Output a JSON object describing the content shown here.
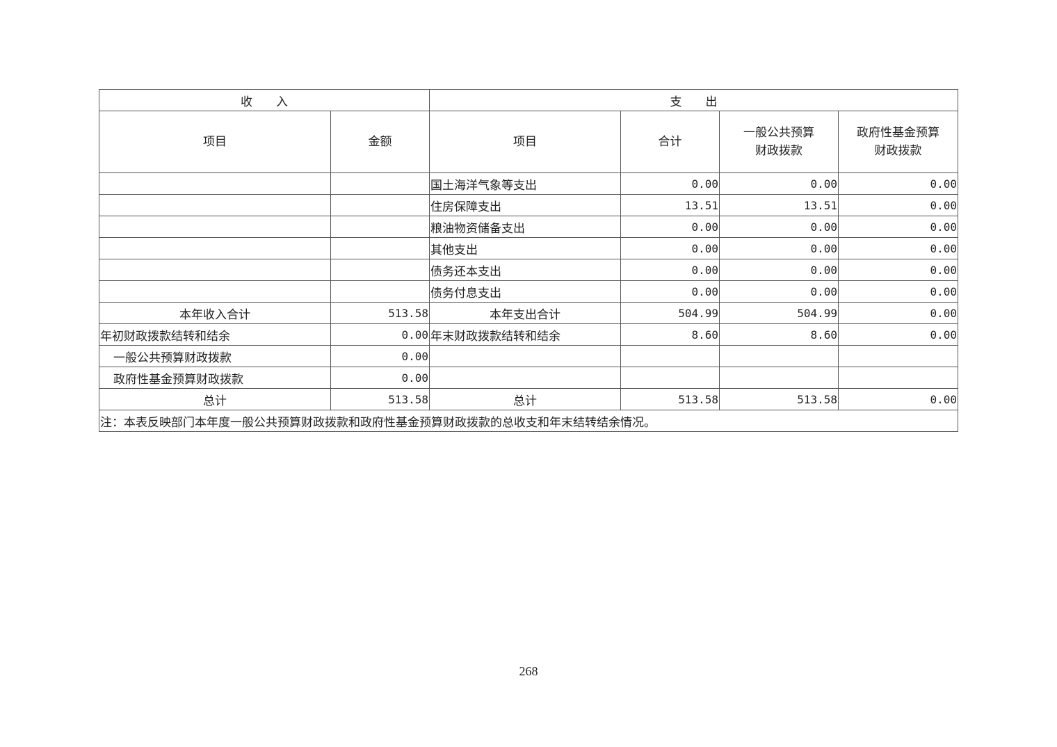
{
  "sections": {
    "income": "收　　入",
    "expense": "支　　出"
  },
  "headers": [
    "项目",
    "金额",
    "项目",
    "合计",
    "一般公共预算\n财政拨款",
    "政府性基金预算\n财政拨款"
  ],
  "rows": [
    {
      "in_item": "",
      "in_amt": "",
      "out_item": "国土海洋气象等支出",
      "total": "0.00",
      "general": "0.00",
      "fund": "0.00"
    },
    {
      "in_item": "",
      "in_amt": "",
      "out_item": "住房保障支出",
      "total": "13.51",
      "general": "13.51",
      "fund": "0.00"
    },
    {
      "in_item": "",
      "in_amt": "",
      "out_item": "粮油物资储备支出",
      "total": "0.00",
      "general": "0.00",
      "fund": "0.00"
    },
    {
      "in_item": "",
      "in_amt": "",
      "out_item": "其他支出",
      "total": "0.00",
      "general": "0.00",
      "fund": "0.00"
    },
    {
      "in_item": "",
      "in_amt": "",
      "out_item": "债务还本支出",
      "total": "0.00",
      "general": "0.00",
      "fund": "0.00"
    },
    {
      "in_item": "",
      "in_amt": "",
      "out_item": "债务付息支出",
      "total": "0.00",
      "general": "0.00",
      "fund": "0.00"
    },
    {
      "in_item": "本年收入合计",
      "in_amt": "513.58",
      "out_item": "本年支出合计",
      "total": "504.99",
      "general": "504.99",
      "fund": "0.00",
      "center": true
    },
    {
      "in_item": "年初财政拨款结转和结余",
      "in_amt": "0.00",
      "out_item": "年末财政拨款结转和结余",
      "total": "8.60",
      "general": "8.60",
      "fund": "0.00"
    },
    {
      "in_item": "一般公共预算财政拨款",
      "in_amt": "0.00",
      "out_item": "",
      "total": "",
      "general": "",
      "fund": "",
      "indent": true
    },
    {
      "in_item": "政府性基金预算财政拨款",
      "in_amt": "0.00",
      "out_item": "",
      "total": "",
      "general": "",
      "fund": "",
      "indent": true
    },
    {
      "in_item": "总计",
      "in_amt": "513.58",
      "out_item": "总计",
      "total": "513.58",
      "general": "513.58",
      "fund": "0.00",
      "center": true
    }
  ],
  "note": "注：本表反映部门本年度一般公共预算财政拨款和政府性基金预算财政拨款的总收支和年末结转结余情况。",
  "page_number": "268"
}
